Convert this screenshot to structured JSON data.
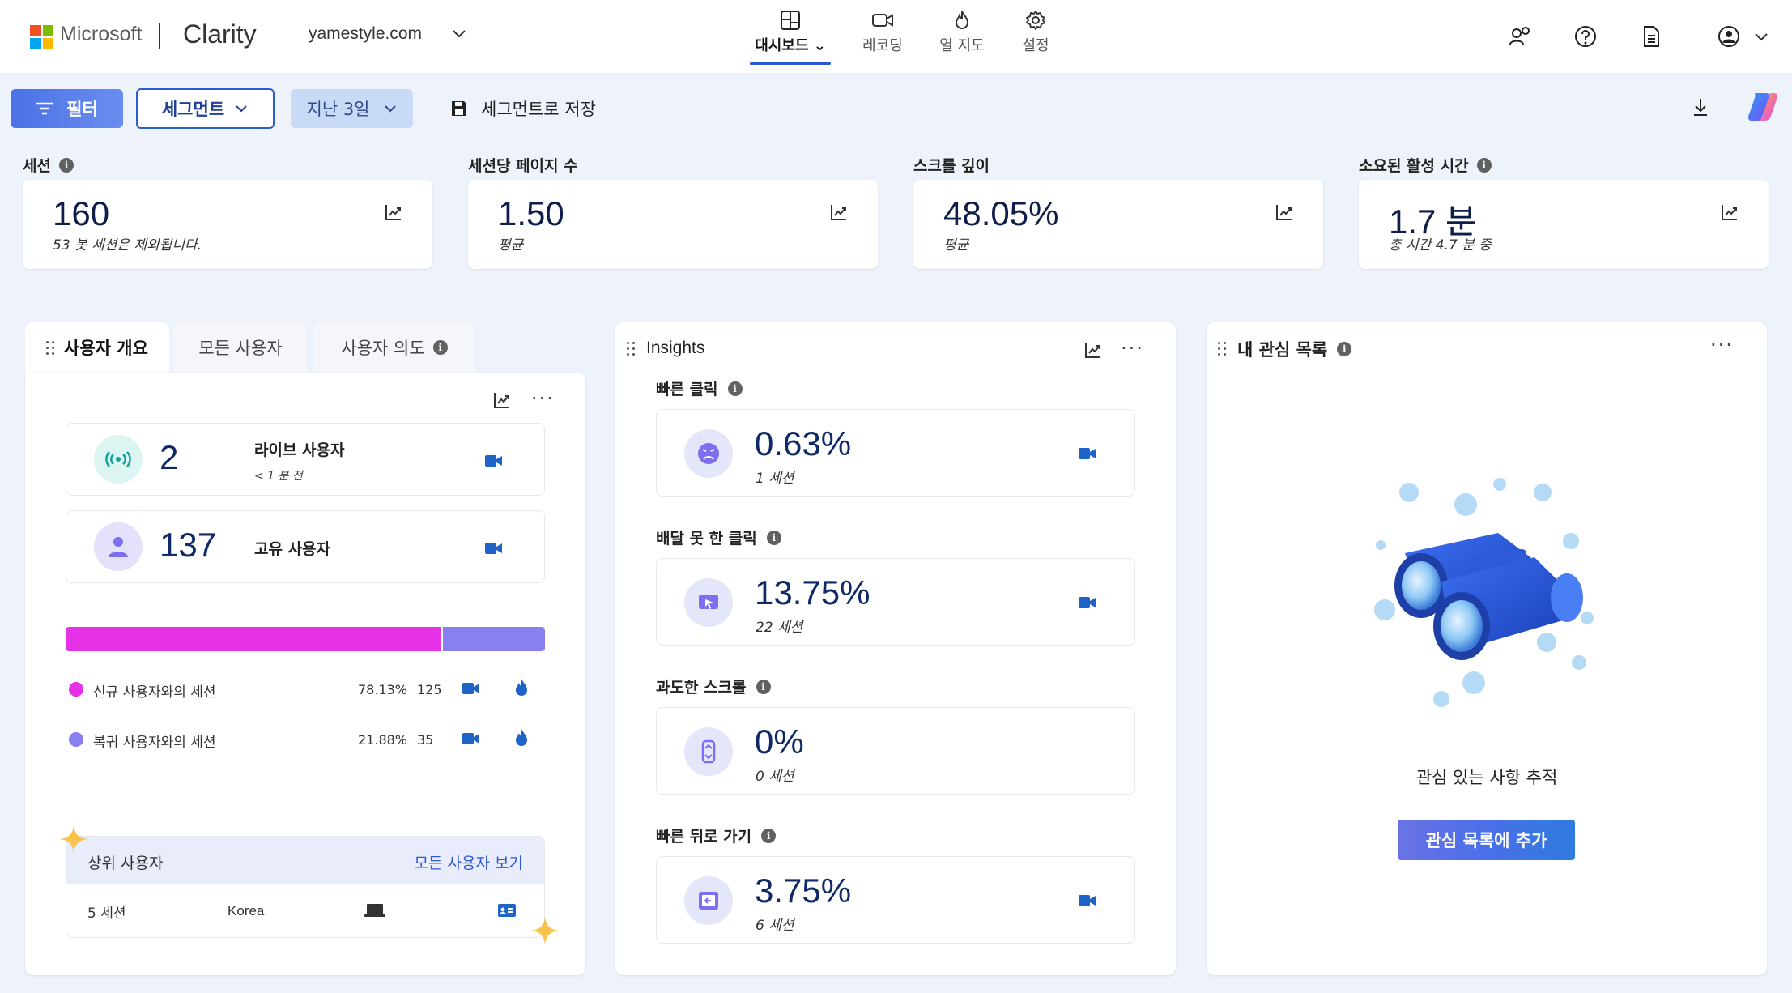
{
  "brand": {
    "ms_text": "Microsoft",
    "app_name": "Clarity",
    "site": "yamestyle.com",
    "logo_colors": [
      "#f25022",
      "#7fba00",
      "#00a4ef",
      "#ffb900"
    ]
  },
  "nav": {
    "dashboard": "대시보드",
    "recordings": "레코딩",
    "heatmaps": "열 지도",
    "settings": "설정"
  },
  "toolbar": {
    "filter": "필터",
    "segment": "세그먼트",
    "range": "지난 3일",
    "save_segment": "세그먼트로 저장"
  },
  "metrics": [
    {
      "label": "세션",
      "value": "160",
      "sub": "53 봇 세션은 제외됩니다."
    },
    {
      "label": "세션당 페이지 수",
      "value": "1.50",
      "sub": "평균"
    },
    {
      "label": "스크롤 깊이",
      "value": "48.05%",
      "sub": "평균"
    },
    {
      "label": "소요된 활성 시간",
      "value": "1.7 분",
      "sub": "총 시간 4.7 분 중"
    }
  ],
  "users_panel": {
    "tabs": [
      "사용자 개요",
      "모든 사용자",
      "사용자 의도"
    ],
    "live_count": "2",
    "live_label": "라이브 사용자",
    "live_time": "< 1 분 전",
    "unique_count": "137",
    "unique_label": "고유 사용자",
    "new_fraction": 0.7813,
    "new_color": "#e632e6",
    "return_color": "#8a7ff0",
    "rows": [
      {
        "label": "신규 사용자와의 세션",
        "pct": "78.13%",
        "count": "125"
      },
      {
        "label": "복귀 사용자와의 세션",
        "pct": "21.88%",
        "count": "35"
      }
    ],
    "top_users_title": "상위 사용자",
    "top_users_link": "모든 사용자 보기",
    "top_user": {
      "sessions": "5 세션",
      "country": "Korea"
    }
  },
  "insights": {
    "title": "Insights",
    "items": [
      {
        "title": "빠른 클릭",
        "value": "0.63%",
        "count": "1 세션"
      },
      {
        "title": "배달 못 한 클릭",
        "value": "13.75%",
        "count": "22 세션"
      },
      {
        "title": "과도한 스크롤",
        "value": "0%",
        "count": "0 세션"
      },
      {
        "title": "빠른 뒤로 가기",
        "value": "3.75%",
        "count": "6 세션"
      }
    ]
  },
  "watchlist": {
    "title": "내 관심 목록",
    "empty_text": "관심 있는 사항 추적",
    "add_button": "관심 목록에 추가"
  }
}
